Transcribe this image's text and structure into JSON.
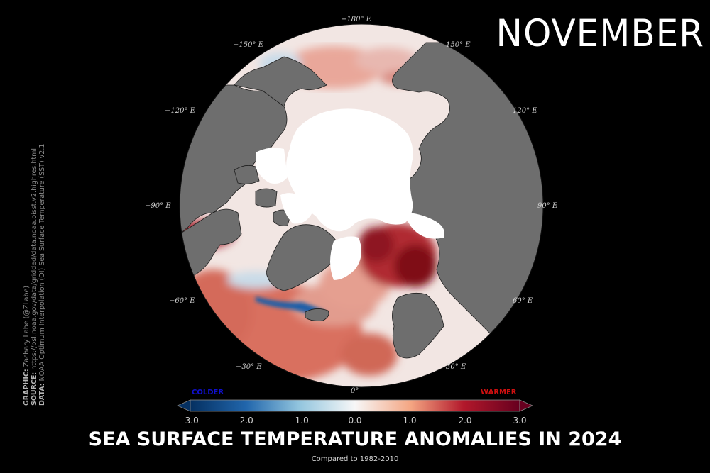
{
  "month": "NOVEMBER",
  "title": "SEA SURFACE TEMPERATURE ANOMALIES IN 2024",
  "subtitle": "Compared to 1982-2010",
  "longitude_labels": {
    "lon_180": "−180° E",
    "lon_m150": "−150° E",
    "lon_150": "150° E",
    "lon_m120": "−120° E",
    "lon_120": "120° E",
    "lon_m90": "−90° E",
    "lon_90": "90° E",
    "lon_m60": "−60° E",
    "lon_60": "60° E",
    "lon_m30": "−30° E",
    "lon_30": "30° E",
    "lon_0": "0°"
  },
  "colorbar": {
    "colder_label": "COLDER",
    "warmer_label": "WARMER",
    "ticks": [
      "-3.0",
      "-2.0",
      "-1.0",
      "0.0",
      "1.0",
      "2.0",
      "3.0"
    ],
    "min": -3.0,
    "max": 3.0,
    "colder_color": "#1010d0",
    "warmer_color": "#d01010"
  },
  "credits": {
    "graphic_key": "GRAPHIC:",
    "graphic_value": "Zachary Labe (@ZLabe)",
    "source_key": "SOURCE:",
    "source_value": "https://psl.noaa.gov/data/gridded/data.noaa.oisst.v2.highres.html",
    "data_key": "DATA:",
    "data_value": "NOAA Optimum Interpolation (OI) Sea Surface Temperature (SST) v2.1"
  },
  "colors": {
    "background": "#000000",
    "land": "#6e6e6e",
    "sea_ice": "#ffffff",
    "neutral_ocean": "#f2e8e6",
    "warm_anomaly": "#c0392b",
    "strong_warm_anomaly": "#7a0f18",
    "cold_anomaly": "#2166ac"
  }
}
